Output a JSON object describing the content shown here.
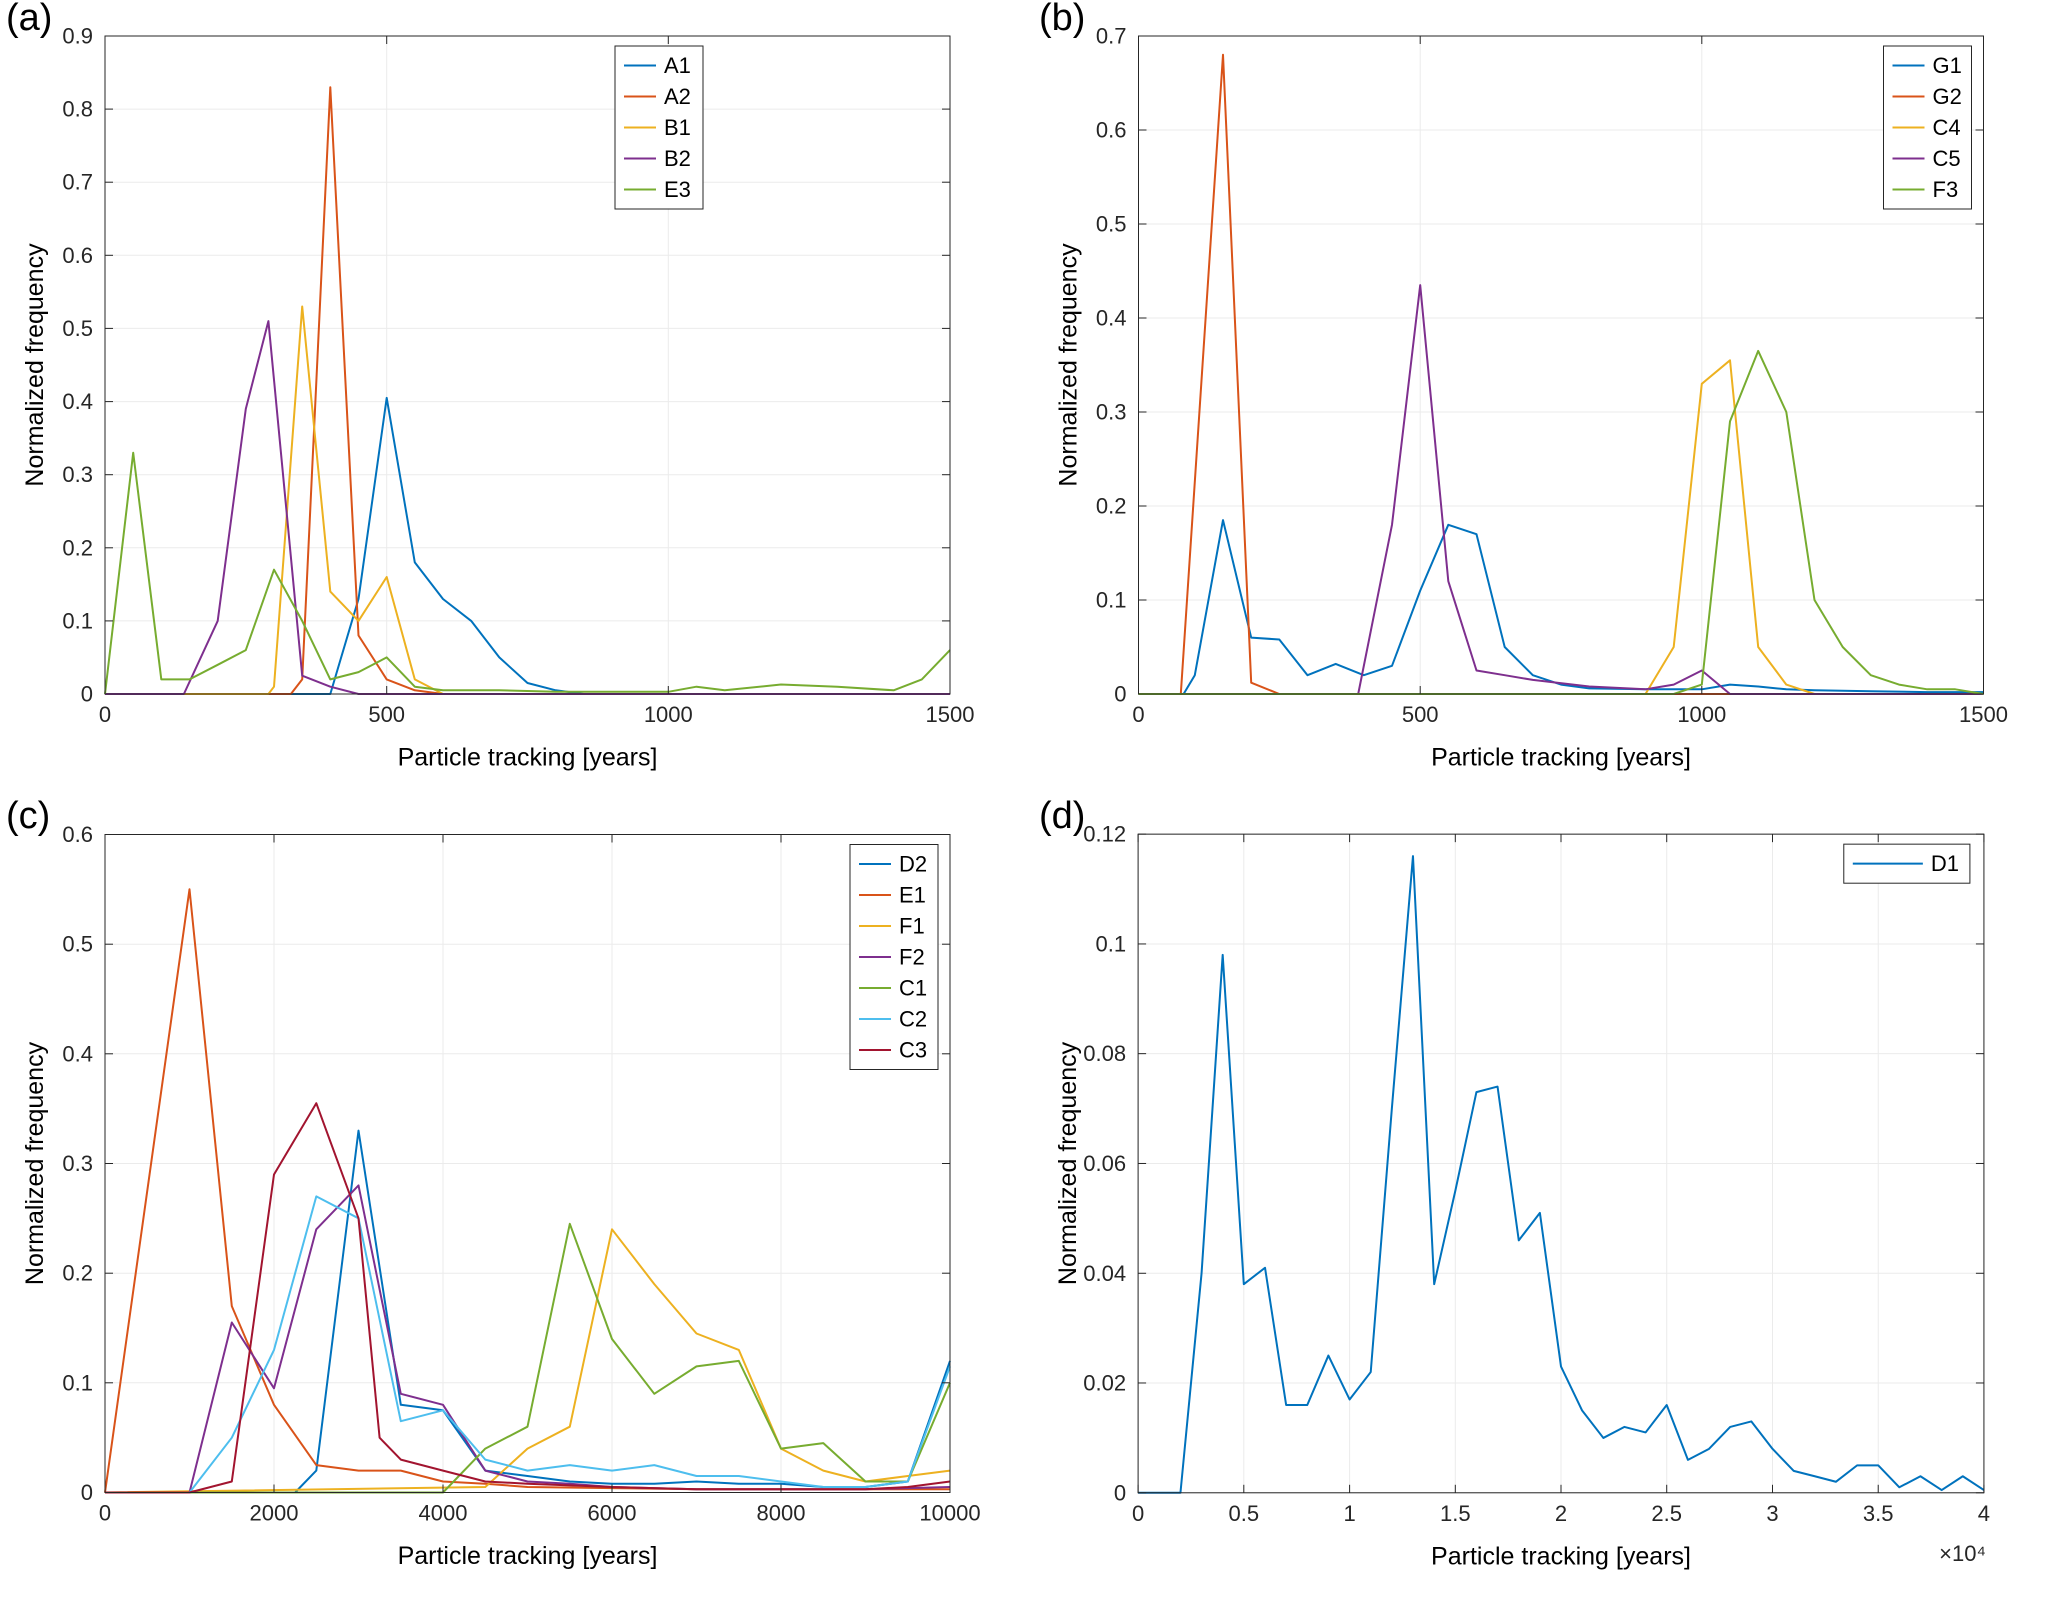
{
  "panels": [
    {
      "letter": "(a)"
    },
    {
      "letter": "(b)"
    },
    {
      "letter": "(c)"
    },
    {
      "letter": "(d)"
    }
  ],
  "style": {
    "axis_color": "#262626",
    "grid_color": "#ebebeb",
    "background": "#ffffff",
    "font_size_ticks": 22,
    "font_size_axis_label": 25,
    "font_size_legend": 22,
    "line_width": 2,
    "palette": {
      "blue": "#0072BD",
      "orange": "#D95319",
      "yellow": "#EDB120",
      "purple": "#7E2F8E",
      "green": "#77AC30",
      "cyan": "#4DBEEE",
      "maroon": "#A2142F"
    }
  },
  "chart_data": [
    {
      "type": "line",
      "panel": "(a)",
      "title": "",
      "xlabel": "Particle tracking [years]",
      "ylabel": "Normalized frequency",
      "xlim": [
        0,
        1500
      ],
      "ylim": [
        0,
        0.9
      ],
      "xticks": [
        0,
        500,
        1000,
        1500
      ],
      "xtick_labels": [
        "0",
        "500",
        "1000",
        "1500"
      ],
      "yticks": [
        0,
        0.1,
        0.2,
        0.3,
        0.4,
        0.5,
        0.6,
        0.7,
        0.8,
        0.9
      ],
      "ytick_labels": [
        "0",
        "0.1",
        "0.2",
        "0.3",
        "0.4",
        "0.5",
        "0.6",
        "0.7",
        "0.8",
        "0.9"
      ],
      "grid": true,
      "legend_position": "top-right-inset",
      "series": [
        {
          "name": "A1",
          "color": "#0072BD",
          "x": [
            0,
            400,
            450,
            500,
            550,
            600,
            650,
            700,
            750,
            800,
            850,
            1500
          ],
          "y": [
            0,
            0,
            0.13,
            0.405,
            0.18,
            0.13,
            0.1,
            0.05,
            0.015,
            0.005,
            0,
            0
          ]
        },
        {
          "name": "A2",
          "color": "#D95319",
          "x": [
            0,
            330,
            350,
            400,
            450,
            500,
            550,
            600,
            1500
          ],
          "y": [
            0,
            0,
            0.02,
            0.83,
            0.08,
            0.02,
            0.005,
            0,
            0
          ]
        },
        {
          "name": "B1",
          "color": "#EDB120",
          "x": [
            0,
            290,
            300,
            350,
            400,
            450,
            500,
            550,
            600,
            1500
          ],
          "y": [
            0,
            0,
            0.01,
            0.53,
            0.14,
            0.1,
            0.16,
            0.02,
            0,
            0
          ]
        },
        {
          "name": "B2",
          "color": "#7E2F8E",
          "x": [
            0,
            140,
            200,
            250,
            290,
            350,
            400,
            450,
            1500
          ],
          "y": [
            0,
            0,
            0.1,
            0.39,
            0.51,
            0.025,
            0.01,
            0,
            0
          ]
        },
        {
          "name": "E3",
          "color": "#77AC30",
          "x": [
            0,
            50,
            100,
            150,
            200,
            250,
            300,
            350,
            400,
            450,
            500,
            550,
            600,
            700,
            800,
            900,
            1000,
            1050,
            1100,
            1200,
            1300,
            1400,
            1450,
            1500
          ],
          "y": [
            0,
            0.33,
            0.02,
            0.02,
            0.04,
            0.06,
            0.17,
            0.1,
            0.02,
            0.03,
            0.05,
            0.01,
            0.005,
            0.005,
            0.003,
            0.003,
            0.003,
            0.01,
            0.005,
            0.013,
            0.01,
            0.005,
            0.02,
            0.06
          ]
        }
      ]
    },
    {
      "type": "line",
      "panel": "(b)",
      "title": "",
      "xlabel": "Particle tracking [years]",
      "ylabel": "Normalized frequency",
      "xlim": [
        0,
        1500
      ],
      "ylim": [
        0,
        0.7
      ],
      "xticks": [
        0,
        500,
        1000,
        1500
      ],
      "xtick_labels": [
        "0",
        "500",
        "1000",
        "1500"
      ],
      "yticks": [
        0,
        0.1,
        0.2,
        0.3,
        0.4,
        0.5,
        0.6,
        0.7
      ],
      "ytick_labels": [
        "0",
        "0.1",
        "0.2",
        "0.3",
        "0.4",
        "0.5",
        "0.6",
        "0.7"
      ],
      "grid": true,
      "legend_position": "top-right",
      "series": [
        {
          "name": "G1",
          "color": "#0072BD",
          "x": [
            0,
            80,
            100,
            150,
            200,
            250,
            300,
            350,
            400,
            450,
            500,
            550,
            600,
            650,
            700,
            750,
            800,
            900,
            1000,
            1050,
            1100,
            1150,
            1200,
            1300,
            1400,
            1500
          ],
          "y": [
            0,
            0,
            0.02,
            0.185,
            0.06,
            0.058,
            0.02,
            0.032,
            0.02,
            0.03,
            0.11,
            0.18,
            0.17,
            0.05,
            0.02,
            0.01,
            0.006,
            0.005,
            0.005,
            0.01,
            0.008,
            0.005,
            0.004,
            0.003,
            0.002,
            0.002
          ]
        },
        {
          "name": "G2",
          "color": "#D95319",
          "x": [
            0,
            75,
            150,
            200,
            250,
            1500
          ],
          "y": [
            0,
            0,
            0.68,
            0.012,
            0,
            0
          ]
        },
        {
          "name": "C4",
          "color": "#EDB120",
          "x": [
            0,
            900,
            950,
            1000,
            1050,
            1100,
            1150,
            1200,
            1500
          ],
          "y": [
            0,
            0,
            0.05,
            0.33,
            0.355,
            0.05,
            0.01,
            0,
            0
          ]
        },
        {
          "name": "C5",
          "color": "#7E2F8E",
          "x": [
            0,
            390,
            450,
            500,
            550,
            600,
            650,
            700,
            800,
            900,
            950,
            1000,
            1050,
            1500
          ],
          "y": [
            0,
            0,
            0.18,
            0.435,
            0.12,
            0.025,
            0.02,
            0.015,
            0.008,
            0.005,
            0.01,
            0.025,
            0,
            0
          ]
        },
        {
          "name": "F3",
          "color": "#77AC30",
          "x": [
            0,
            950,
            1000,
            1050,
            1100,
            1150,
            1200,
            1250,
            1300,
            1350,
            1400,
            1450,
            1500
          ],
          "y": [
            0,
            0,
            0.01,
            0.29,
            0.365,
            0.3,
            0.1,
            0.05,
            0.02,
            0.01,
            0.005,
            0.005,
            0
          ]
        }
      ]
    },
    {
      "type": "line",
      "panel": "(c)",
      "title": "",
      "xlabel": "Particle tracking [years]",
      "ylabel": "Normalized frequency",
      "xlim": [
        0,
        10000
      ],
      "ylim": [
        0,
        0.6
      ],
      "xticks": [
        0,
        2000,
        4000,
        6000,
        8000,
        10000
      ],
      "xtick_labels": [
        "0",
        "2000",
        "4000",
        "6000",
        "8000",
        "10000"
      ],
      "yticks": [
        0,
        0.1,
        0.2,
        0.3,
        0.4,
        0.5,
        0.6
      ],
      "ytick_labels": [
        "0",
        "0.1",
        "0.2",
        "0.3",
        "0.4",
        "0.5",
        "0.6"
      ],
      "grid": true,
      "legend_position": "top-right",
      "series": [
        {
          "name": "D2",
          "color": "#0072BD",
          "x": [
            0,
            2250,
            2500,
            3000,
            3500,
            4000,
            4500,
            5000,
            5500,
            6000,
            6500,
            7000,
            7500,
            8000,
            8500,
            9000,
            9500,
            10000
          ],
          "y": [
            0,
            0,
            0.02,
            0.33,
            0.08,
            0.075,
            0.02,
            0.015,
            0.01,
            0.008,
            0.008,
            0.01,
            0.008,
            0.008,
            0.005,
            0.005,
            0.01,
            0.12
          ]
        },
        {
          "name": "E1",
          "color": "#D95319",
          "x": [
            0,
            1000,
            1500,
            2000,
            2500,
            3000,
            3500,
            4000,
            4500,
            5000,
            6000,
            7000,
            8000,
            9000,
            10000
          ],
          "y": [
            0,
            0.55,
            0.17,
            0.08,
            0.025,
            0.02,
            0.02,
            0.01,
            0.008,
            0.005,
            0.004,
            0.003,
            0.003,
            0.003,
            0.003
          ]
        },
        {
          "name": "F1",
          "color": "#EDB120",
          "x": [
            0,
            4500,
            5000,
            5500,
            6000,
            6500,
            7000,
            7500,
            8000,
            8500,
            9000,
            9500,
            10000
          ],
          "y": [
            0,
            0.005,
            0.04,
            0.06,
            0.24,
            0.19,
            0.145,
            0.13,
            0.04,
            0.02,
            0.01,
            0.015,
            0.02
          ]
        },
        {
          "name": "F2",
          "color": "#7E2F8E",
          "x": [
            0,
            1000,
            1500,
            2000,
            2500,
            3000,
            3500,
            4000,
            4500,
            5000,
            5500,
            6000,
            7000,
            8000,
            9000,
            10000
          ],
          "y": [
            0,
            0,
            0.155,
            0.095,
            0.24,
            0.28,
            0.09,
            0.08,
            0.02,
            0.01,
            0.008,
            0.005,
            0.003,
            0.003,
            0.003,
            0.005
          ]
        },
        {
          "name": "C1",
          "color": "#77AC30",
          "x": [
            0,
            4000,
            4500,
            5000,
            5500,
            6000,
            6500,
            7000,
            7500,
            8000,
            8500,
            9000,
            9500,
            10000
          ],
          "y": [
            0,
            0,
            0.04,
            0.06,
            0.245,
            0.14,
            0.09,
            0.115,
            0.12,
            0.04,
            0.045,
            0.01,
            0.01,
            0.1
          ]
        },
        {
          "name": "C2",
          "color": "#4DBEEE",
          "x": [
            0,
            1000,
            1500,
            2000,
            2500,
            3000,
            3500,
            4000,
            4500,
            5000,
            5500,
            6000,
            6500,
            7000,
            7500,
            8000,
            8500,
            9000,
            9500,
            10000
          ],
          "y": [
            0,
            0,
            0.05,
            0.13,
            0.27,
            0.25,
            0.065,
            0.075,
            0.03,
            0.02,
            0.025,
            0.02,
            0.025,
            0.015,
            0.015,
            0.01,
            0.005,
            0.005,
            0.01,
            0.115
          ]
        },
        {
          "name": "C3",
          "color": "#A2142F",
          "x": [
            0,
            1000,
            1500,
            2000,
            2500,
            3000,
            3250,
            3500,
            4000,
            4500,
            5000,
            6000,
            7000,
            8000,
            9000,
            9500,
            10000
          ],
          "y": [
            0,
            0,
            0.01,
            0.29,
            0.355,
            0.25,
            0.05,
            0.03,
            0.02,
            0.01,
            0.008,
            0.005,
            0.003,
            0.003,
            0.003,
            0.005,
            0.01
          ]
        }
      ]
    },
    {
      "type": "line",
      "panel": "(d)",
      "title": "",
      "xlabel": "Particle tracking [years]",
      "ylabel": "Normalized frequency",
      "x_multiplier_label": "×10⁴",
      "xlim": [
        0,
        40000
      ],
      "ylim": [
        0,
        0.12
      ],
      "xticks": [
        0,
        5000,
        10000,
        15000,
        20000,
        25000,
        30000,
        35000,
        40000
      ],
      "xtick_labels": [
        "0",
        "0.5",
        "1",
        "1.5",
        "2",
        "2.5",
        "3",
        "3.5",
        "4"
      ],
      "yticks": [
        0,
        0.02,
        0.04,
        0.06,
        0.08,
        0.1,
        0.12
      ],
      "ytick_labels": [
        "0",
        "0.02",
        "0.04",
        "0.06",
        "0.08",
        "0.1",
        "0.12"
      ],
      "grid": true,
      "legend_position": "top-right",
      "series": [
        {
          "name": "D1",
          "color": "#0072BD",
          "x": [
            0,
            1000,
            2000,
            3000,
            4000,
            5000,
            6000,
            7000,
            8000,
            9000,
            10000,
            11000,
            12000,
            13000,
            14000,
            15000,
            16000,
            17000,
            18000,
            19000,
            20000,
            21000,
            22000,
            23000,
            24000,
            25000,
            26000,
            27000,
            28000,
            29000,
            30000,
            31000,
            32000,
            33000,
            34000,
            35000,
            36000,
            37000,
            38000,
            39000,
            40000
          ],
          "y": [
            0,
            0,
            0,
            0.04,
            0.098,
            0.038,
            0.041,
            0.016,
            0.016,
            0.025,
            0.017,
            0.022,
            0.07,
            0.116,
            0.038,
            0.055,
            0.073,
            0.074,
            0.046,
            0.051,
            0.023,
            0.015,
            0.01,
            0.012,
            0.011,
            0.016,
            0.006,
            0.008,
            0.012,
            0.013,
            0.008,
            0.004,
            0.003,
            0.002,
            0.005,
            0.005,
            0.001,
            0.003,
            0.0005,
            0.003,
            0.0005
          ]
        }
      ]
    }
  ]
}
